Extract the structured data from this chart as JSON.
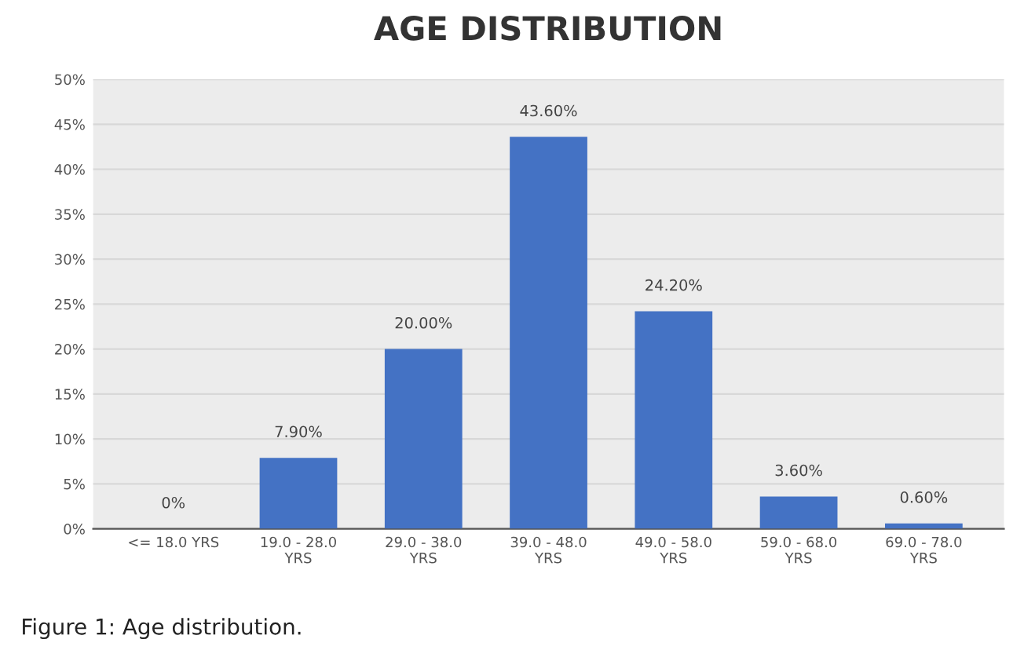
{
  "chart_data": {
    "type": "bar",
    "title": "AGE DISTRIBUTION",
    "categories": [
      "<= 18.0 YRS",
      "19.0 - 28.0\nYRS",
      "29.0 - 38.0\nYRS",
      "39.0 - 48.0\nYRS",
      "49.0 - 58.0\nYRS",
      "59.0 - 68.0\nYRS",
      "69.0 - 78.0\nYRS"
    ],
    "values": [
      0,
      7.9,
      20,
      43.6,
      24.2,
      3.6,
      0.6
    ],
    "value_labels": [
      "0%",
      "7.90%",
      "20.00%",
      "43.60%",
      "24.20%",
      "3.60%",
      "0.60%"
    ],
    "color": "#4472c4",
    "ylim": [
      0,
      50
    ],
    "yticks": [
      {
        "value": 0,
        "label": "0%"
      },
      {
        "value": 5,
        "label": "5%"
      },
      {
        "value": 10,
        "label": "10%"
      },
      {
        "value": 15,
        "label": "15%"
      },
      {
        "value": 20,
        "label": "20%"
      },
      {
        "value": 25,
        "label": "25%"
      },
      {
        "value": 30,
        "label": "30%"
      },
      {
        "value": 35,
        "label": "35%"
      },
      {
        "value": 40,
        "label": "40%"
      },
      {
        "value": 45,
        "label": "45%"
      },
      {
        "value": 50,
        "label": "50%"
      }
    ],
    "grid": "y",
    "annotations": [
      "Figure 1: Age distribution."
    ]
  }
}
